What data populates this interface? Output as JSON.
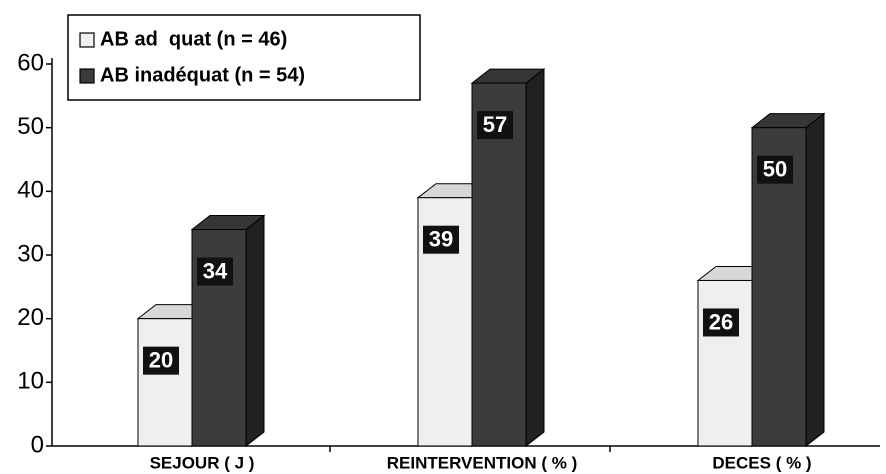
{
  "chart_data": {
    "type": "bar3d",
    "categories": [
      "SEJOUR ( J )",
      "REINTERVENTION ( % )",
      "DECES ( % )"
    ],
    "series": [
      {
        "name": "AB ad  quat (n = 46)",
        "color": "#efefef",
        "values": [
          20,
          39,
          26
        ]
      },
      {
        "name": "AB inadéquat (n = 54)",
        "color": "#3c3c3c",
        "values": [
          34,
          57,
          50
        ]
      }
    ],
    "ylim": [
      0,
      60
    ],
    "yticks": [
      0,
      10,
      20,
      30,
      40,
      50,
      60
    ]
  }
}
